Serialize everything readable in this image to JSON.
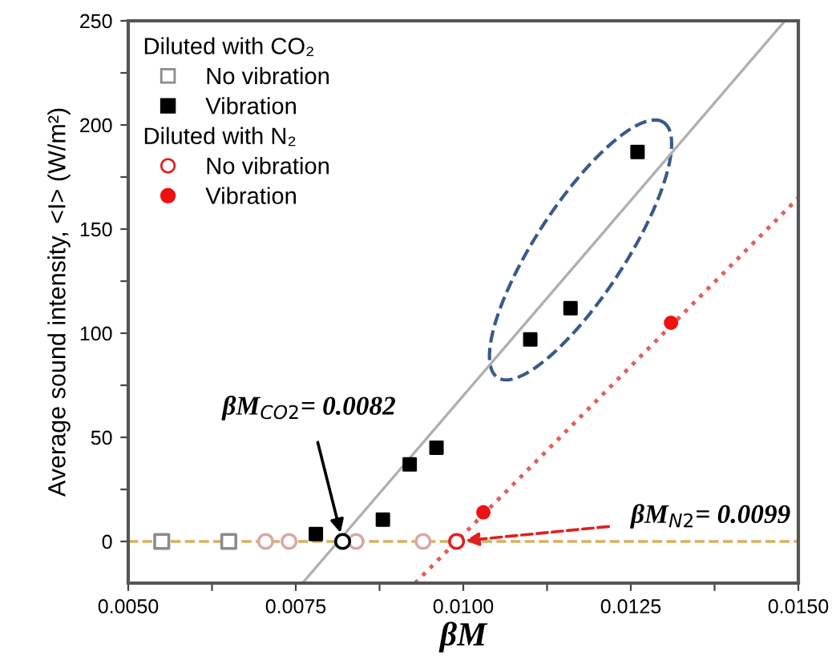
{
  "chart_data": {
    "type": "scatter",
    "xlabel": "βM",
    "ylabel": "Average sound intensity, <I> (W/m²)",
    "xlim": [
      0.005,
      0.015
    ],
    "ylim": [
      -20,
      250
    ],
    "xticks": [
      {
        "value": 0.005,
        "label": "0.0050"
      },
      {
        "value": 0.00625,
        "label": null
      },
      {
        "value": 0.0075,
        "label": "0.0075"
      },
      {
        "value": 0.00875,
        "label": null
      },
      {
        "value": 0.01,
        "label": "0.0100"
      },
      {
        "value": 0.01125,
        "label": null
      },
      {
        "value": 0.0125,
        "label": "0.0125"
      },
      {
        "value": 0.01375,
        "label": null
      },
      {
        "value": 0.015,
        "label": "0.0150"
      }
    ],
    "yticks": [
      0,
      {
        "value": 25,
        "label": null
      },
      50,
      {
        "value": 75,
        "label": null
      },
      100,
      {
        "value": 125,
        "label": null
      },
      150,
      {
        "value": 175,
        "label": null
      },
      200,
      {
        "value": 225,
        "label": null
      },
      250
    ],
    "grid": false,
    "legend": "top left",
    "legend_title": [
      "Diluted with CO₂",
      "Diluted with N₂"
    ],
    "series": [
      {
        "name": "No vibration",
        "marker": "square",
        "color": "#8c8c8c",
        "x": [
          0.0055,
          0.0065
        ],
        "values": [
          0,
          0
        ]
      },
      {
        "name": "Vibration",
        "marker": "square",
        "color": "#000000",
        "x": [
          0.0078,
          0.0088,
          0.0092,
          0.0096,
          0.011,
          0.0116,
          0.0126
        ],
        "values": [
          3.6,
          10.5,
          37,
          45,
          97,
          112,
          187
        ]
      },
      {
        "name": "No vibration",
        "marker": "circle",
        "color": "#e02020",
        "colors": [
          "#d8a8a8",
          "#d8a8a8",
          "#d8a8a8",
          "#d8a8a8",
          "#e02020"
        ],
        "x": [
          0.00705,
          0.0074,
          0.0084,
          0.0094,
          0.0099
        ],
        "values": [
          0,
          0,
          0,
          0,
          0
        ]
      },
      {
        "name": "Vibration",
        "marker": "circle",
        "color": "#ee1111",
        "x": [
          0.0103,
          0.0131
        ],
        "values": [
          14,
          105
        ]
      },
      {
        "type": "scatter",
        "marker": "circle",
        "color": "#000000",
        "x": [
          0.0082
        ],
        "values": [
          0
        ]
      },
      {
        "type": "line",
        "line_style": "solid",
        "color": "#b0b0b0",
        "x": [
          0.0076,
          0.0148
        ],
        "values": [
          -20,
          250
        ]
      },
      {
        "type": "line",
        "line_style": "dotted",
        "color": "#e06060",
        "x": [
          0.00928,
          0.015
        ],
        "values": [
          -20,
          165
        ]
      }
    ],
    "ref_lines": [
      {
        "axis": "y",
        "value": 0,
        "color": "#d8b060",
        "line_style": "dashed"
      }
    ],
    "annotations": [
      {
        "text": "βM$_{CO2}$= 0.0082",
        "x": 0.0082,
        "y": 0
      },
      {
        "text": "βM$_{N2}$= 0.0099",
        "x": 0.0099,
        "y": 0
      }
    ]
  }
}
